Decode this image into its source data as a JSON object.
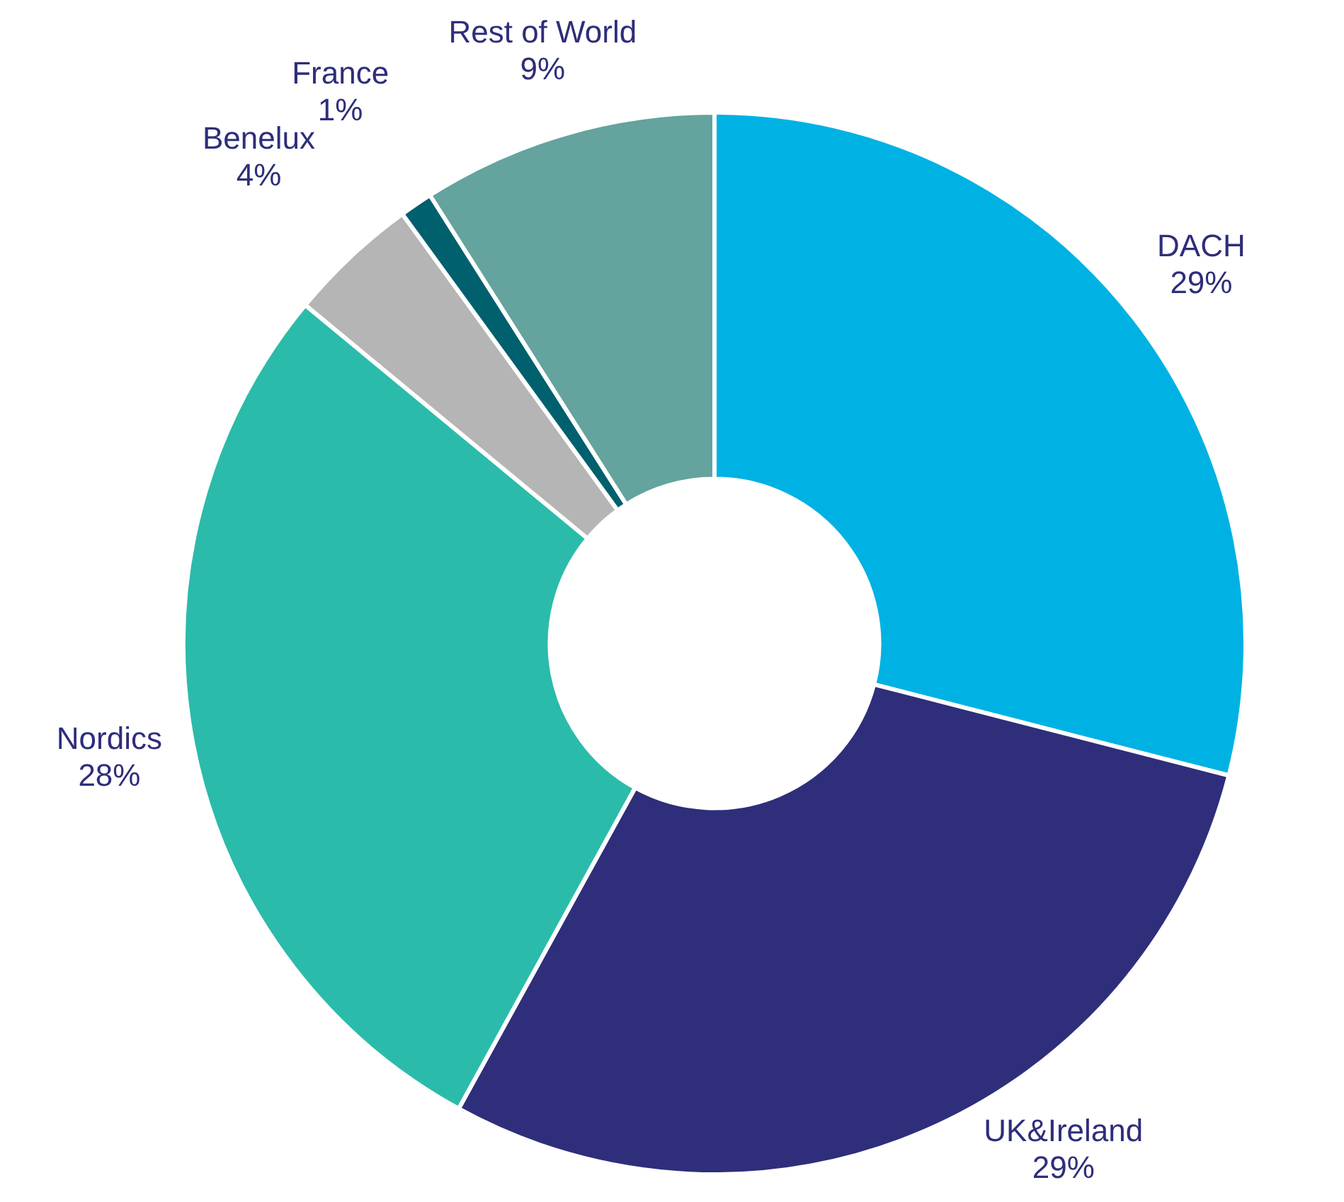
{
  "chart_data": {
    "type": "donut",
    "categories": [
      "DACH",
      "UK&Ireland",
      "Nordics",
      "Benelux",
      "France",
      "Rest of World"
    ],
    "values": [
      29,
      29,
      28,
      4,
      1,
      9
    ],
    "value_labels": [
      "29%",
      "29%",
      "28%",
      "4%",
      "1%",
      "9%"
    ],
    "colors": [
      "#00b2e3",
      "#2e2e7b",
      "#2bbbaa",
      "#b5b5b5",
      "#00606e",
      "#64a39e"
    ],
    "legend": false
  }
}
